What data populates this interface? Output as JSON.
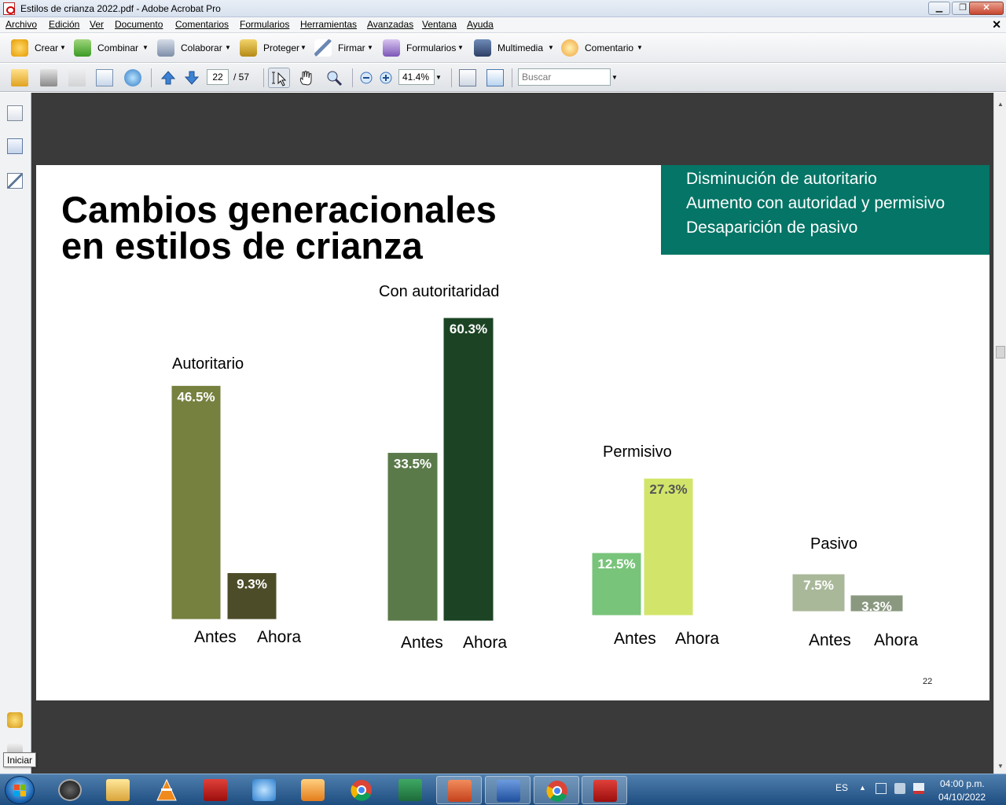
{
  "window": {
    "title": "Estilos de crianza 2022.pdf - Adobe Acrobat Pro",
    "app_icon": "acrobat-pdf-icon",
    "controls": [
      "minimize-icon",
      "restore-icon",
      "close-icon"
    ]
  },
  "menubar": {
    "items": [
      "Archivo",
      "Edición",
      "Ver",
      "Documento",
      "Comentarios",
      "Formularios",
      "Herramientas",
      "Avanzadas",
      "Ventana",
      "Ayuda"
    ],
    "close_glyph": "✕"
  },
  "tasks": {
    "items": [
      {
        "label": "Crear",
        "icon": "create-pdf-icon"
      },
      {
        "label": "Combinar",
        "icon": "combine-files-icon"
      },
      {
        "label": "Colaborar",
        "icon": "collaborate-icon"
      },
      {
        "label": "Proteger",
        "icon": "lock-icon"
      },
      {
        "label": "Firmar",
        "icon": "pen-sign-icon"
      },
      {
        "label": "Formularios",
        "icon": "form-icon"
      },
      {
        "label": "Multimedia",
        "icon": "film-icon"
      },
      {
        "label": "Comentario",
        "icon": "comment-cloud-icon"
      }
    ]
  },
  "toolbar": {
    "page_current": "22",
    "page_total": "/ 57",
    "zoom": "41.4%",
    "search_placeholder": "Buscar"
  },
  "slide": {
    "title_line1": "Cambios generacionales",
    "title_line2": "en estilos de crianza",
    "callout": [
      "Disminución de autoritario",
      "Aumento con autoridad y permisivo",
      "Desaparición de pasivo"
    ],
    "callout_color": "#047566",
    "page_number": "22"
  },
  "chart_data": {
    "type": "bar",
    "groups": [
      {
        "title": "Autoritario",
        "categories": [
          "Antes",
          "Ahora"
        ],
        "values": [
          46.5,
          9.3
        ],
        "labels": [
          "46.5%",
          "9.3%"
        ],
        "colors": [
          "#76803f",
          "#4d4c28"
        ]
      },
      {
        "title": "Con autoritaridad",
        "categories": [
          "Antes",
          "Ahora"
        ],
        "values": [
          33.5,
          60.3
        ],
        "labels": [
          "33.5%",
          "60.3%"
        ],
        "colors": [
          "#5b7a4a",
          "#1c4424"
        ]
      },
      {
        "title": "Permisivo",
        "categories": [
          "Antes",
          "Ahora"
        ],
        "values": [
          12.5,
          27.3
        ],
        "labels": [
          "12.5%",
          "27.3%"
        ],
        "colors": [
          "#78c47a",
          "#d2e56a"
        ]
      },
      {
        "title": "Pasivo",
        "categories": [
          "Antes",
          "Ahora"
        ],
        "values": [
          7.5,
          3.3
        ],
        "labels": [
          "7.5%",
          "3.3%"
        ],
        "colors": [
          "#aab89a",
          "#8a9880"
        ]
      }
    ],
    "label_colors": [
      "#ffffff",
      "#ffffff",
      "#ffffff",
      "#ffffff",
      "#ffffff",
      "#555555",
      "#ffffff",
      "#ffffff"
    ],
    "grid": false,
    "legend": "none"
  },
  "taskbar": {
    "apps": [
      "windows-start-icon",
      "app-16-icon",
      "file-explorer-icon",
      "vlc-icon",
      "acrobat-icon",
      "app-blue-icon",
      "media-player-icon",
      "chrome-icon",
      "excel-icon",
      "powerpoint-icon",
      "word-icon",
      "chrome-profile-icon",
      "acrobat-active-icon"
    ],
    "lang": "ES",
    "time": "04:00 p.m.",
    "date": "04/10/2022",
    "tooltip": "Iniciar"
  }
}
